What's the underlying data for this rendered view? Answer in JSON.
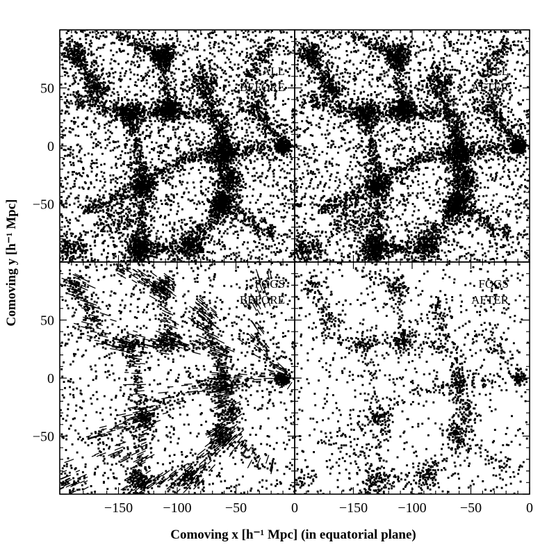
{
  "chart_data": {
    "type": "scatter",
    "xlabel": "Comoving x [h⁻¹ Mpc] (in equatorial plane)",
    "ylabel": "Comoving y [h⁻¹ Mpc]",
    "xlim": [
      -200,
      0
    ],
    "ylim": [
      -100,
      100
    ],
    "x_ticks": [
      -150,
      -100,
      -50,
      0
    ],
    "x_tick_labels": [
      "−150",
      "−100",
      "−50",
      "0"
    ],
    "y_ticks": [
      -50,
      0,
      50
    ],
    "y_tick_labels": [
      "−50",
      "0",
      "50"
    ],
    "grid": false,
    "panels": [
      {
        "id": "all-before",
        "row": 0,
        "col": 0,
        "label_line1": "ALL",
        "label_line2": "BEFORE",
        "density": 1.0,
        "fog": false
      },
      {
        "id": "all-after",
        "row": 0,
        "col": 1,
        "label_line1": "ALL",
        "label_line2": "AFTER",
        "density": 1.0,
        "fog": false
      },
      {
        "id": "fogs-before",
        "row": 1,
        "col": 0,
        "label_line1": "FOGS",
        "label_line2": "BEFORE",
        "density": 0.42,
        "fog": true
      },
      {
        "id": "fogs-after",
        "row": 1,
        "col": 1,
        "label_line1": "FOGS",
        "label_line2": "AFTER",
        "density": 0.26,
        "fog": false
      }
    ],
    "structures": {
      "clusters": [
        {
          "x": -112,
          "y": 78,
          "sigma": 6,
          "weight": 1.2
        },
        {
          "x": -108,
          "y": 31,
          "sigma": 5,
          "weight": 1.6
        },
        {
          "x": -140,
          "y": 28,
          "sigma": 6,
          "weight": 1.0
        },
        {
          "x": -170,
          "y": 50,
          "sigma": 7,
          "weight": 0.8
        },
        {
          "x": -187,
          "y": 80,
          "sigma": 6,
          "weight": 0.9
        },
        {
          "x": -60,
          "y": -5,
          "sigma": 6,
          "weight": 1.5
        },
        {
          "x": -10,
          "y": 0,
          "sigma": 3,
          "weight": 1.3
        },
        {
          "x": -130,
          "y": -33,
          "sigma": 5,
          "weight": 1.2
        },
        {
          "x": -62,
          "y": -50,
          "sigma": 6,
          "weight": 1.5
        },
        {
          "x": -55,
          "y": -28,
          "sigma": 5,
          "weight": 0.9
        },
        {
          "x": -132,
          "y": -88,
          "sigma": 7,
          "weight": 1.8
        },
        {
          "x": -88,
          "y": -86,
          "sigma": 8,
          "weight": 1.3
        },
        {
          "x": -78,
          "y": 55,
          "sigma": 7,
          "weight": 0.8
        },
        {
          "x": -155,
          "y": -65,
          "sigma": 8,
          "weight": 0.6
        },
        {
          "x": -35,
          "y": 35,
          "sigma": 8,
          "weight": 0.6
        },
        {
          "x": -190,
          "y": -90,
          "sigma": 7,
          "weight": 0.8
        }
      ],
      "filaments": [
        {
          "x1": -112,
          "y1": 78,
          "x2": -108,
          "y2": 31
        },
        {
          "x1": -108,
          "y1": 31,
          "x2": -140,
          "y2": 28
        },
        {
          "x1": -108,
          "y1": 31,
          "x2": -60,
          "y2": 25
        },
        {
          "x1": -60,
          "y1": 25,
          "x2": -60,
          "y2": -5
        },
        {
          "x1": -60,
          "y1": -5,
          "x2": -10,
          "y2": 0
        },
        {
          "x1": -60,
          "y1": -5,
          "x2": -62,
          "y2": -50
        },
        {
          "x1": -140,
          "y1": 28,
          "x2": -130,
          "y2": -33
        },
        {
          "x1": -130,
          "y1": -33,
          "x2": -132,
          "y2": -88
        },
        {
          "x1": -130,
          "y1": -33,
          "x2": -95,
          "y2": -10
        },
        {
          "x1": -95,
          "y1": -10,
          "x2": -60,
          "y2": -5
        },
        {
          "x1": -140,
          "y1": 28,
          "x2": -190,
          "y2": 40
        },
        {
          "x1": -170,
          "y1": 50,
          "x2": -187,
          "y2": 80
        },
        {
          "x1": -112,
          "y1": 78,
          "x2": -150,
          "y2": 95
        },
        {
          "x1": -62,
          "y1": -50,
          "x2": -88,
          "y2": -86
        },
        {
          "x1": -132,
          "y1": -88,
          "x2": -88,
          "y2": -86
        },
        {
          "x1": -60,
          "y1": -5,
          "x2": -78,
          "y2": 55
        },
        {
          "x1": -40,
          "y1": 60,
          "x2": -20,
          "y2": 90
        },
        {
          "x1": -130,
          "y1": -33,
          "x2": -180,
          "y2": -55
        },
        {
          "x1": -62,
          "y1": -50,
          "x2": -20,
          "y2": -75
        },
        {
          "x1": -35,
          "y1": 35,
          "x2": -10,
          "y2": 0
        }
      ]
    }
  }
}
